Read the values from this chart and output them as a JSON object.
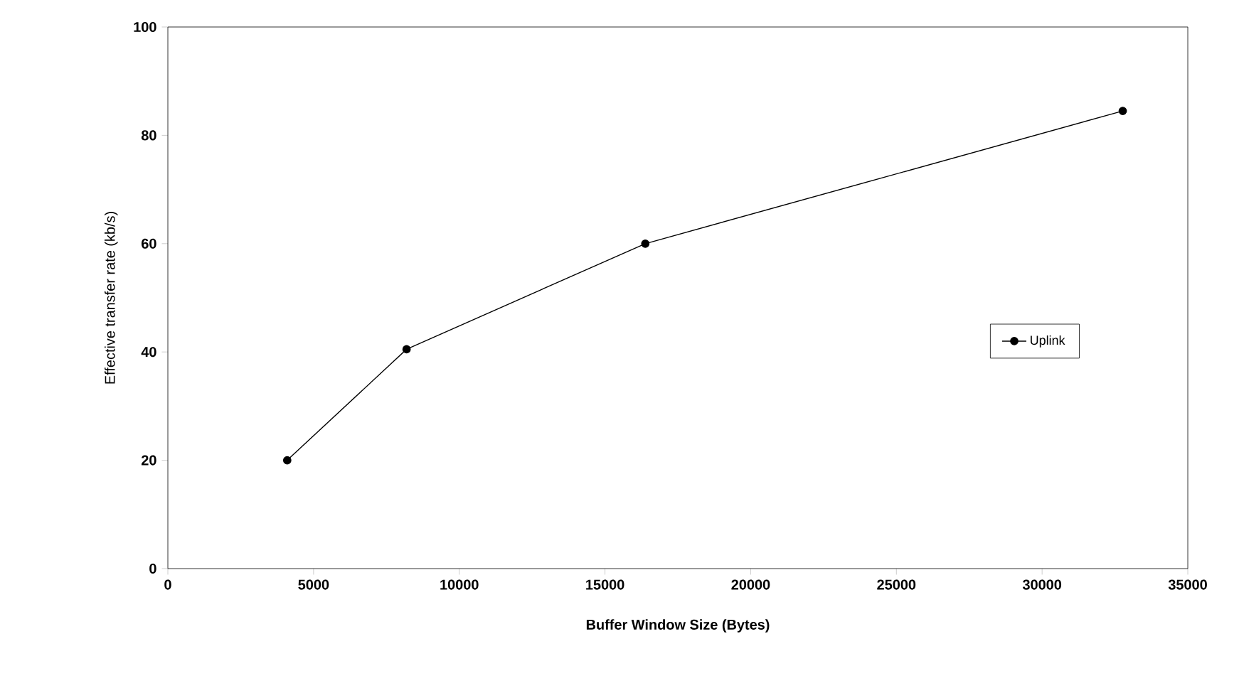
{
  "chart_data": {
    "type": "line",
    "xlabel": "Buffer Window Size (Bytes)",
    "ylabel": "Effective transfer rate (kb/s)",
    "x": [
      4096,
      8192,
      16384,
      32768
    ],
    "series": [
      {
        "name": "Uplink",
        "color": "#000000",
        "values": [
          20,
          40.5,
          60,
          84.5
        ]
      }
    ],
    "xlim": [
      0,
      35000
    ],
    "xticks": [
      0,
      5000,
      10000,
      15000,
      20000,
      25000,
      30000,
      35000
    ],
    "ylim": [
      0,
      100
    ],
    "yticks": [
      0,
      20,
      40,
      60,
      80,
      100
    ],
    "grid": false,
    "legend": "right",
    "marker": "circle",
    "line_style": "solid"
  }
}
